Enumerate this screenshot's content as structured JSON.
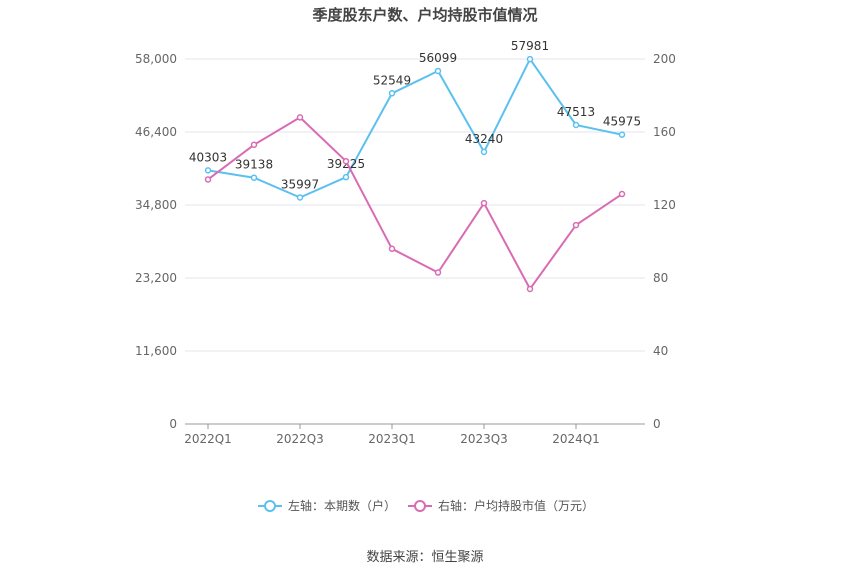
{
  "title": "季度股东户数、户均持股市值情况",
  "source": "数据来源：恒生聚源",
  "chart_data": {
    "type": "line",
    "x": [
      "2022Q1",
      "2022Q2",
      "2022Q3",
      "2022Q4",
      "2023Q1",
      "2023Q2",
      "2023Q3",
      "2023Q4",
      "2024Q1",
      "2024Q2"
    ],
    "x_tick_labels": [
      "2022Q1",
      "2022Q3",
      "2023Q1",
      "2023Q3",
      "2024Q1"
    ],
    "y_left": {
      "ylim": [
        0,
        58000
      ],
      "ticks": [
        "0",
        "11,600",
        "23,200",
        "34,800",
        "46,400",
        "58,000"
      ]
    },
    "y_right": {
      "ylim": [
        0,
        200
      ],
      "ticks": [
        "0",
        "40",
        "80",
        "120",
        "160",
        "200"
      ]
    },
    "series": [
      {
        "name": "左轴：本期数（户）",
        "axis": "left",
        "color": "#5bc0f0",
        "values": [
          40303,
          39138,
          35997,
          39225,
          52549,
          56099,
          43240,
          57981,
          47513,
          45975
        ],
        "labels": [
          "40303",
          "39138",
          "35997",
          "39225",
          "52549",
          "56099",
          "43240",
          "57981",
          "47513",
          "45975"
        ]
      },
      {
        "name": "右轴：户均持股市值（万元）",
        "axis": "right",
        "color": "#d96bb4",
        "values": [
          134,
          153,
          168,
          144,
          96,
          83,
          121,
          74,
          109,
          126
        ]
      }
    ],
    "grid": true,
    "legend_position": "bottom"
  }
}
